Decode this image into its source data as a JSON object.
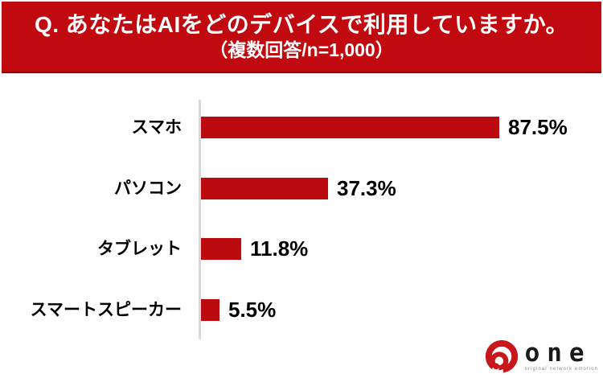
{
  "header": {
    "title": "Q. あなたはAIをどのデバイスで利用していますか。",
    "subtitle": "（複数回答/n=1,000）",
    "bg_color": "#C00A0F",
    "text_color": "#FFFFFF"
  },
  "chart_data": {
    "type": "bar",
    "orientation": "horizontal",
    "title": "Q. あなたはAIをどのデバイスで利用していますか。（複数回答/n=1,000）",
    "categories": [
      "スマホ",
      "パソコン",
      "タブレット",
      "スマートスピーカー"
    ],
    "values": [
      87.5,
      37.3,
      11.8,
      5.5
    ],
    "value_labels": [
      "87.5%",
      "37.3%",
      "11.8%",
      "5.5%"
    ],
    "xlim": [
      0,
      100
    ],
    "grid": false,
    "legend": false,
    "bar_color": "#BC0B10",
    "axis_color": "#D9D9D9",
    "label_color": "#000000"
  },
  "logo": {
    "icon": "one-spiral-logo-icon",
    "word": "one",
    "tagline": "original network emotion",
    "icon_color": "#C8161D"
  }
}
